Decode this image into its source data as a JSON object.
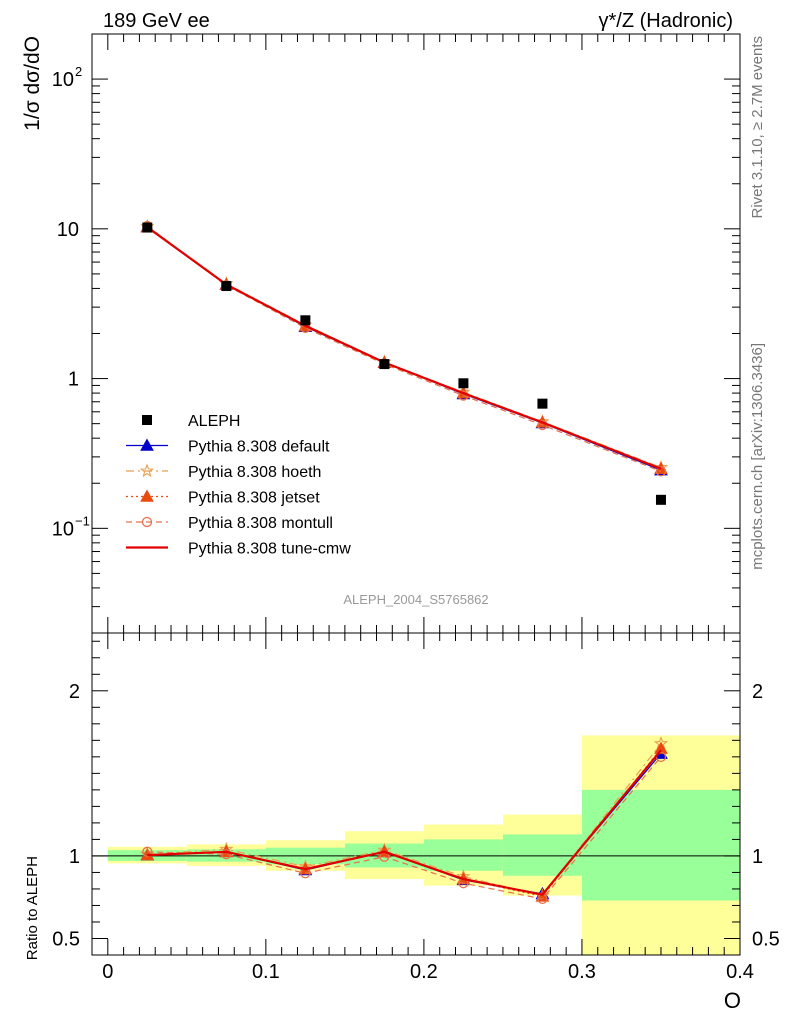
{
  "header": {
    "left_title": "189 GeV ee",
    "right_title": "γ*/Z (Hadronic)"
  },
  "side_text": {
    "rivet": "Rivet 3.1.10, ≥ 2.7M events",
    "mcplots": "mcplots.cern.ch [arXiv:1306.3436]"
  },
  "chart_data": [
    {
      "type": "line",
      "ylabel": "1/σ  dσ/dO",
      "yscale": "log",
      "ylim": [
        0.02,
        200
      ],
      "xlim": [
        -0.01,
        0.4
      ],
      "watermark": "ALEPH_2004_S5765862",
      "legend_position": "lower-left",
      "y_ticks": [
        {
          "value": 100,
          "label": "10",
          "sup": "2"
        },
        {
          "value": 10,
          "label": "10",
          "sup": ""
        },
        {
          "value": 1,
          "label": "1",
          "sup": ""
        },
        {
          "value": 0.1,
          "label": "10",
          "sup": "−1"
        }
      ],
      "data": {
        "name": "ALEPH",
        "x": [
          0.025,
          0.075,
          0.125,
          0.175,
          0.225,
          0.275,
          0.35
        ],
        "y": [
          10.2,
          4.15,
          2.45,
          1.25,
          0.93,
          0.68,
          0.155
        ]
      },
      "series": [
        {
          "name": "Pythia 8.308 default",
          "color": "#0000cc",
          "dash": "",
          "width": 1.2,
          "marker": "tri",
          "fill": "#0000cc",
          "y": [
            10.3,
            4.25,
            2.22,
            1.28,
            0.79,
            0.505,
            0.245
          ]
        },
        {
          "name": "Pythia 8.308 hoeth",
          "color": "#e8a050",
          "dash": "8 4 2 4",
          "width": 1.2,
          "marker": "star",
          "fill": "none",
          "y": [
            10.35,
            4.3,
            2.28,
            1.29,
            0.81,
            0.515,
            0.255
          ]
        },
        {
          "name": "Pythia 8.308 jetset",
          "color": "#e84a10",
          "dash": "2 3",
          "width": 1.2,
          "marker": "tri",
          "fill": "#e84a10",
          "y": [
            10.25,
            4.25,
            2.24,
            1.28,
            0.8,
            0.51,
            0.25
          ]
        },
        {
          "name": "Pythia 8.308 montull",
          "color": "#e8704a",
          "dash": "6 4",
          "width": 1.2,
          "marker": "circ",
          "fill": "none",
          "y": [
            10.45,
            4.2,
            2.18,
            1.25,
            0.77,
            0.49,
            0.24
          ]
        },
        {
          "name": "Pythia 8.308 tune-cmw",
          "color": "#e00000",
          "dash": "",
          "width": 2.2,
          "marker": "none",
          "fill": "none",
          "y": [
            10.25,
            4.25,
            2.25,
            1.28,
            0.8,
            0.51,
            0.25
          ]
        }
      ]
    },
    {
      "type": "line",
      "xlabel": "O",
      "ylabel": "Ratio to ALEPH",
      "ylim": [
        0.4,
        2.35
      ],
      "xlim": [
        -0.01,
        0.4
      ],
      "x_ticks": [
        {
          "value": 0,
          "label": "0"
        },
        {
          "value": 0.1,
          "label": "0.1"
        },
        {
          "value": 0.2,
          "label": "0.2"
        },
        {
          "value": 0.3,
          "label": "0.3"
        },
        {
          "value": 0.4,
          "label": "0.4"
        }
      ],
      "y_ticks": [
        {
          "value": 2,
          "label": "2"
        },
        {
          "value": 1,
          "label": "1"
        },
        {
          "value": 0.5,
          "label": "0.5"
        }
      ],
      "bands": [
        {
          "x0": 0.0,
          "x1": 0.05,
          "y0": 0.955,
          "y1": 1.055,
          "inner_y0": 0.97,
          "inner_y1": 1.035
        },
        {
          "x0": 0.05,
          "x1": 0.1,
          "y0": 0.94,
          "y1": 1.07,
          "inner_y0": 0.965,
          "inner_y1": 1.04
        },
        {
          "x0": 0.1,
          "x1": 0.15,
          "y0": 0.91,
          "y1": 1.095,
          "inner_y0": 0.95,
          "inner_y1": 1.05
        },
        {
          "x0": 0.15,
          "x1": 0.2,
          "y0": 0.86,
          "y1": 1.15,
          "inner_y0": 0.93,
          "inner_y1": 1.075
        },
        {
          "x0": 0.2,
          "x1": 0.25,
          "y0": 0.82,
          "y1": 1.19,
          "inner_y0": 0.91,
          "inner_y1": 1.1
        },
        {
          "x0": 0.25,
          "x1": 0.3,
          "y0": 0.76,
          "y1": 1.25,
          "inner_y0": 0.88,
          "inner_y1": 1.13
        },
        {
          "x0": 0.3,
          "x1": 0.4,
          "y0": 0.4,
          "y1": 1.73,
          "inner_y0": 0.73,
          "inner_y1": 1.4
        }
      ],
      "reference": 1,
      "series": [
        {
          "name": "Pythia 8.308 default",
          "y": [
            1.005,
            1.025,
            0.915,
            1.025,
            0.855,
            0.77,
            1.62
          ]
        },
        {
          "name": "Pythia 8.308 hoeth",
          "y": [
            1.01,
            1.04,
            0.935,
            1.035,
            0.875,
            0.76,
            1.68
          ]
        },
        {
          "name": "Pythia 8.308 jetset",
          "y": [
            1.005,
            1.025,
            0.92,
            1.025,
            0.86,
            0.755,
            1.65
          ]
        },
        {
          "name": "Pythia 8.308 montull",
          "y": [
            1.025,
            1.01,
            0.895,
            0.995,
            0.835,
            0.74,
            1.6
          ]
        },
        {
          "name": "Pythia 8.308 tune-cmw",
          "y": [
            1.005,
            1.025,
            0.92,
            1.025,
            0.86,
            0.765,
            1.64
          ]
        }
      ]
    }
  ]
}
